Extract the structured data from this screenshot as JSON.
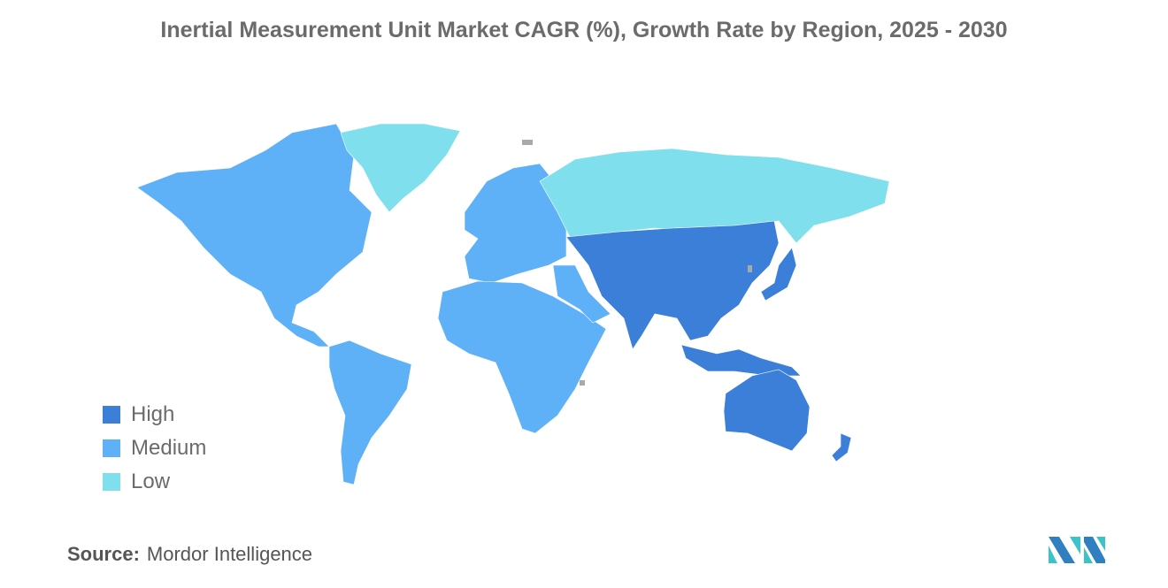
{
  "title": "Inertial Measurement Unit Market CAGR (%), Growth Rate by Region, 2025 - 2030",
  "legend": [
    {
      "label": "High",
      "color": "#3b7fd9"
    },
    {
      "label": "Medium",
      "color": "#5eb1f7"
    },
    {
      "label": "Low",
      "color": "#7fdfec"
    }
  ],
  "no_data_color": "#a9a9a9",
  "regions": [
    {
      "name": "North America",
      "level": "Medium"
    },
    {
      "name": "South America",
      "level": "Medium"
    },
    {
      "name": "Europe",
      "level": "Medium"
    },
    {
      "name": "Africa",
      "level": "Medium"
    },
    {
      "name": "Middle East",
      "level": "Medium"
    },
    {
      "name": "Greenland",
      "level": "Low"
    },
    {
      "name": "Russia",
      "level": "Low"
    },
    {
      "name": "Asia",
      "level": "High"
    },
    {
      "name": "Japan",
      "level": "High"
    },
    {
      "name": "Southeast Asia",
      "level": "High"
    },
    {
      "name": "Australia",
      "level": "High"
    },
    {
      "name": "New Zealand",
      "level": "High"
    }
  ],
  "source": {
    "label": "Source:",
    "value": "Mordor Intelligence"
  }
}
